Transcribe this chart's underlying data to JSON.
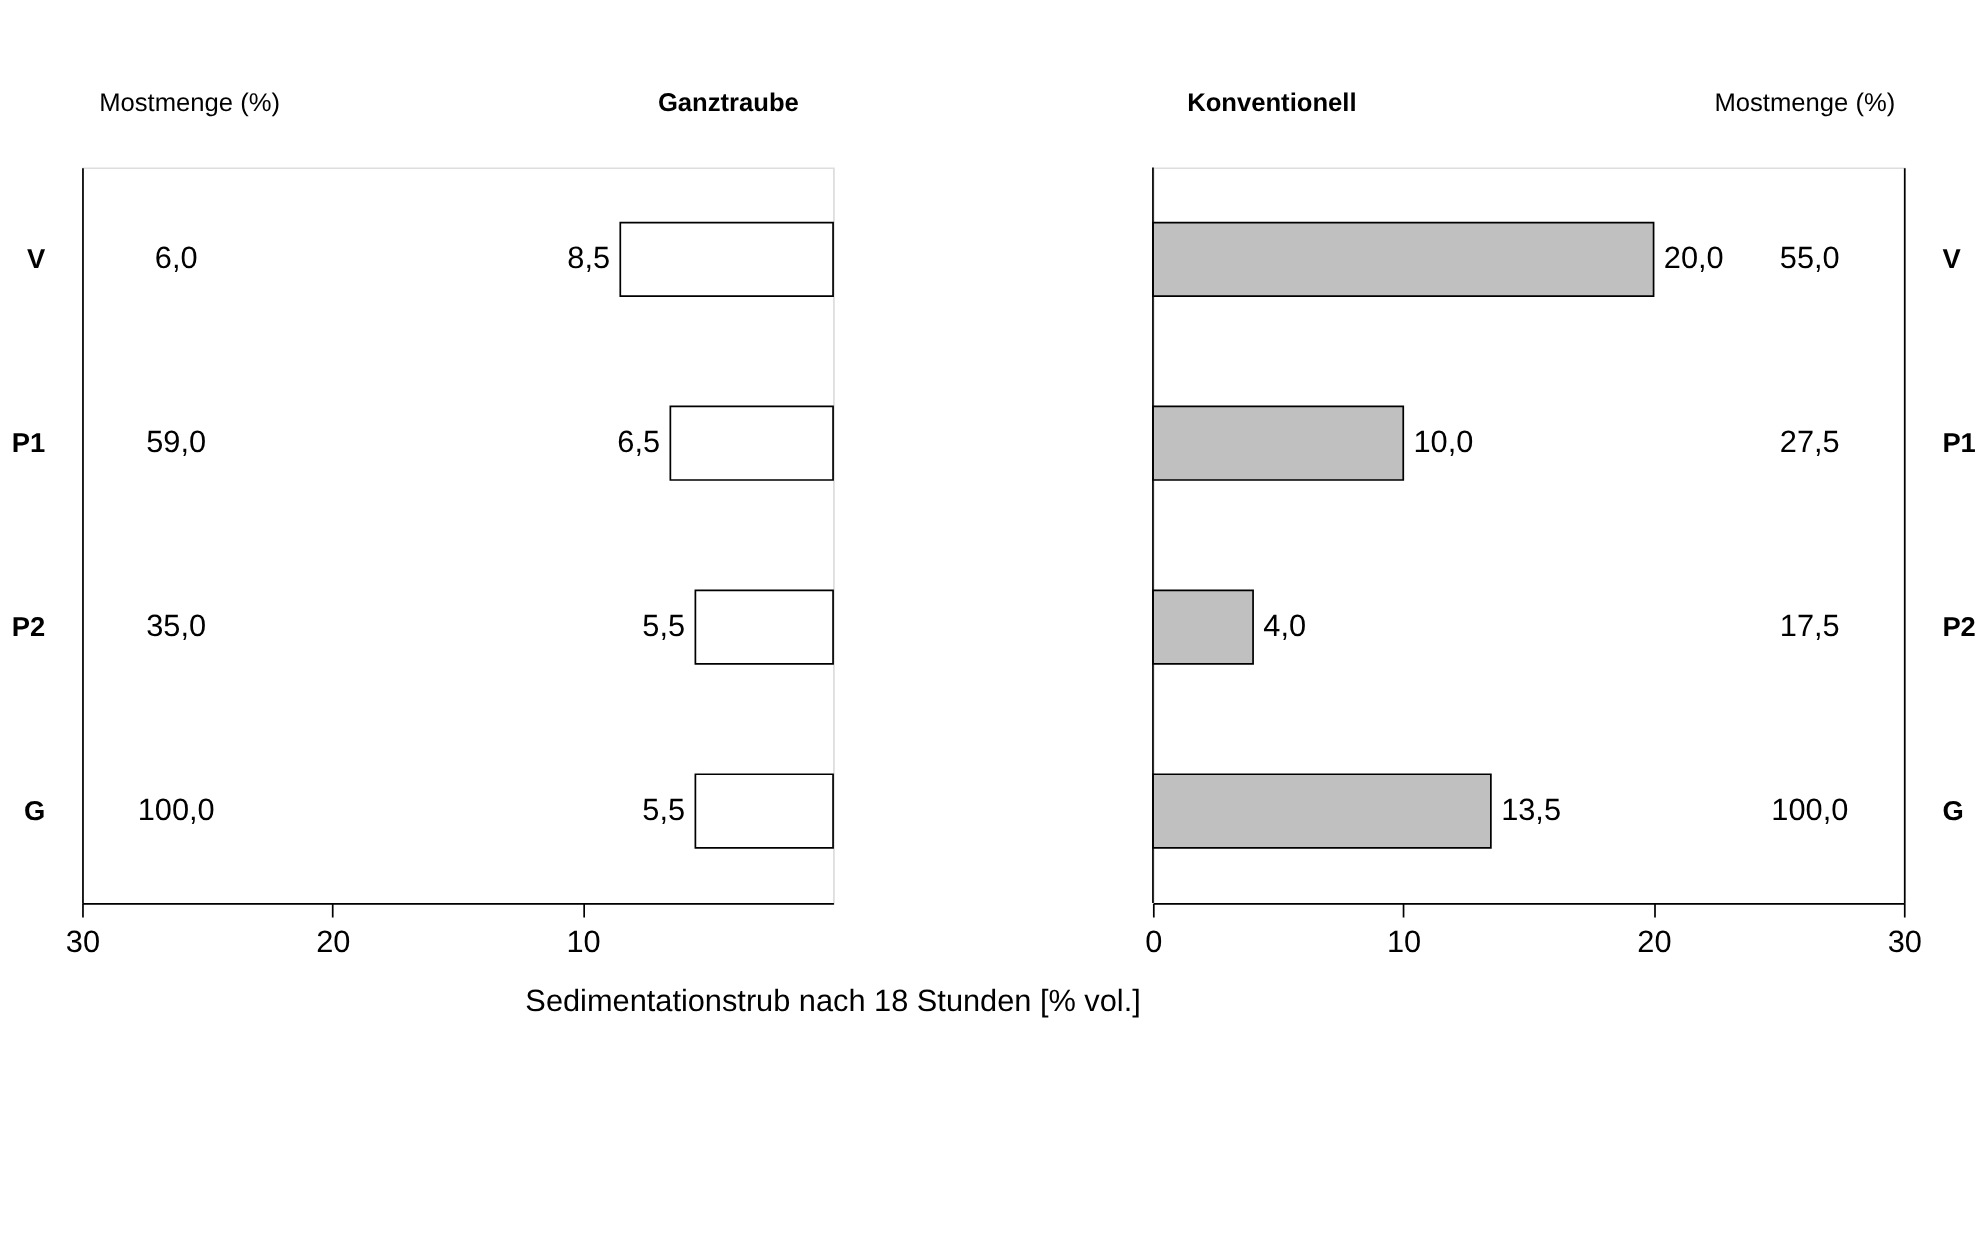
{
  "chart_data": [
    {
      "type": "bar",
      "orientation": "horizontal",
      "xlabel": "Sedimentationstrub nach 18 Stunden [% vol.]",
      "categories": [
        "V",
        "P1",
        "P2",
        "G"
      ],
      "series": [
        {
          "name": "Ganztraube",
          "color": "#ffffff",
          "values": [
            8.5,
            6.5,
            5.5,
            5.5
          ],
          "value_labels": [
            "8,5",
            "6,5",
            "5,5",
            "5,5"
          ]
        }
      ],
      "xlim": [
        30,
        0
      ],
      "xticks": [
        30,
        20,
        10
      ],
      "annotations": [
        "Mostmenge (%)",
        "6,0",
        "59,0",
        "35,0",
        "100,0"
      ]
    },
    {
      "type": "bar",
      "orientation": "horizontal",
      "categories": [
        "V",
        "P1",
        "P2",
        "G"
      ],
      "series": [
        {
          "name": "Konventionell",
          "color": "#c0c0c0",
          "values": [
            20.0,
            10.0,
            4.0,
            13.5
          ],
          "value_labels": [
            "20,0",
            "10,0",
            "4,0",
            "13,5"
          ]
        }
      ],
      "xlim": [
        0,
        30
      ],
      "xticks": [
        0,
        10,
        20,
        30
      ],
      "annotations": [
        "Mostmenge (%)",
        "55,0",
        "27,5",
        "17,5",
        "100,0"
      ]
    }
  ]
}
